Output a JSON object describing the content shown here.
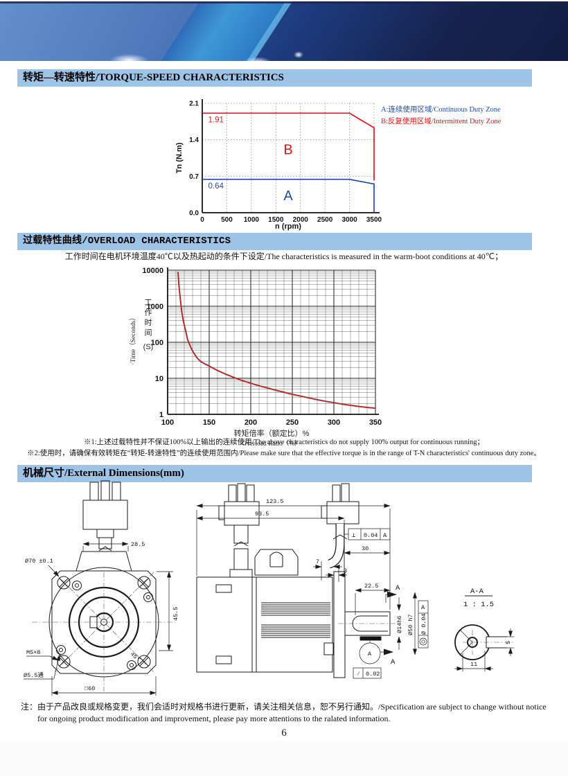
{
  "page_number": "6",
  "torque_section": {
    "title": "转矩—转速特性/TORQUE-SPEED CHARACTERISTICS",
    "legend": [
      {
        "label": "A:连续使用区域/Continuous Duty Zone",
        "color": "#2149b0"
      },
      {
        "label": "B:反复使用区域/Intermittent Duty Zone",
        "color": "#e8120f"
      }
    ]
  },
  "overload_section": {
    "title": "过载特性曲线/OVERLOAD CHARACTERISTICS",
    "subtitle": "工作时间在电机环境温度40℃以及热起动的条件下设定/The characteristics is measured in the warm-boot conditions at 40℃；",
    "notes": [
      "※1:上述过载特性并不保证100%以上输出的连续使用/The above characteristics do not supply 100% output for continuous running；",
      "※2:使用时，请确保有效转矩在“转矩-转速特性”的连续使用范围内/Please make sure that the effective torque is in the range of T-N characteristics' continuous duty zone。"
    ]
  },
  "dimensions_section": {
    "title": "机械尺寸/External Dimensions(mm)",
    "front": {
      "dim_width": "28.5",
      "pilot": "Ø70 ±0.1",
      "height": "45.5",
      "screw": "M5×8",
      "hole": "Ø5.5通",
      "square": "□60",
      "angle": "45°"
    },
    "side": {
      "overall": "123.5",
      "body": "93.5",
      "perp_sym": "⊥",
      "perp_tol": "0.04",
      "perp_datum": "A",
      "dim_30": "30",
      "dim_7": "7",
      "dim_3": "3",
      "dim_22_5": "22.5",
      "sec_a_top": "A",
      "sec_a_bottom": "A",
      "datum_circle": "A",
      "shaft_dia": "Ø14h6",
      "pilot_dia": "Ø50 h7",
      "conc_tol": "Ø 0.04",
      "conc_datum": "A",
      "flat_sym": "∕",
      "flat_tol": "0.02"
    },
    "section_aa": {
      "title": "A-A",
      "scale": "1 : 1.5",
      "dim_11": "11",
      "dim_5": "5"
    }
  },
  "footer": {
    "label": "注：",
    "line1": "由于产品改良或规格变更，我们会适时对规格书进行更新，请关注相关信息，恕不另行通知。/Specification are subject to change without notice",
    "line2": "for ongoing product modification and improvement, please pay more attentions to the ralated information."
  },
  "chart_data": [
    {
      "type": "line",
      "title": "Torque-Speed characteristics",
      "xlabel": "n (rpm)",
      "ylabel": "Tn (N.m)",
      "xlim": [
        0,
        3500
      ],
      "ylim": [
        0,
        2.1
      ],
      "xticks": [
        0,
        500,
        1000,
        1500,
        2000,
        2500,
        3000,
        3500
      ],
      "yticks": [
        0,
        0.7,
        1.4,
        2.1
      ],
      "ytick_labels": [
        "0.0",
        "0.7",
        "1.4",
        "2.1"
      ],
      "grid": true,
      "legend_position": "right",
      "series": [
        {
          "name": "B intermittent duty limit",
          "color": "#e8120f",
          "points": [
            [
              0,
              1.91
            ],
            [
              3000,
              1.91
            ],
            [
              3500,
              1.63
            ],
            [
              3500,
              0.62
            ]
          ],
          "value_label": "1.91",
          "zone_label": "B",
          "label_x": 1750,
          "label_y": 1.12
        },
        {
          "name": "A continuous duty limit",
          "color": "#2149b0",
          "points": [
            [
              0,
              0.64
            ],
            [
              3000,
              0.64
            ],
            [
              3500,
              0.55
            ],
            [
              3500,
              0
            ]
          ],
          "value_label": "0.64",
          "zone_label": "A",
          "label_x": 1750,
          "label_y": 0.24
        }
      ]
    },
    {
      "type": "line",
      "title": "Overload characteristics",
      "xlabel_cjk": "转矩倍率（额定比）%",
      "xlabel_en": "Overload Ratio（%）",
      "ylabel_cjk": "工作时间",
      "ylabel_en": "·Time（Seconds）",
      "ylabel_unit": "(S)",
      "xlim": [
        100,
        350
      ],
      "ylim_log": [
        1,
        10000
      ],
      "xticks": [
        100,
        150,
        200,
        250,
        300,
        350
      ],
      "yticks": [
        1,
        10,
        100,
        1000,
        10000
      ],
      "grid": "log-minor",
      "series": [
        {
          "name": "overload curve",
          "color": "#b32b2b",
          "points": [
            [
              112.5,
              9000
            ],
            [
              113.5,
              4000
            ],
            [
              115,
              1800
            ],
            [
              117,
              700
            ],
            [
              119,
              380
            ],
            [
              121,
              240
            ],
            [
              124,
              120
            ],
            [
              127,
              80
            ],
            [
              130,
              57
            ],
            [
              135,
              38
            ],
            [
              140,
              29
            ],
            [
              145,
              25
            ],
            [
              150,
              22
            ],
            [
              160,
              16.5
            ],
            [
              170,
              13
            ],
            [
              180,
              10.5
            ],
            [
              190,
              8.6
            ],
            [
              200,
              7.3
            ],
            [
              210,
              6.2
            ],
            [
              220,
              5.4
            ],
            [
              230,
              4.7
            ],
            [
              240,
              4.1
            ],
            [
              250,
              3.6
            ],
            [
              260,
              3.2
            ],
            [
              270,
              2.85
            ],
            [
              280,
              2.55
            ],
            [
              290,
              2.3
            ],
            [
              300,
              2.1
            ],
            [
              310,
              1.92
            ],
            [
              320,
              1.78
            ],
            [
              330,
              1.66
            ],
            [
              340,
              1.56
            ],
            [
              350,
              1.48
            ]
          ]
        }
      ]
    }
  ]
}
